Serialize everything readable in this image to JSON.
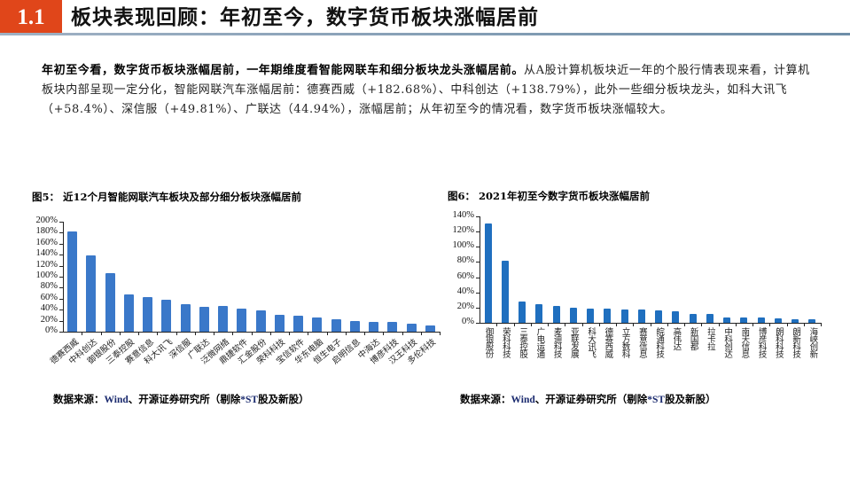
{
  "header": {
    "section_number": "1.1",
    "title": "板块表现回顾：年初至今，数字货币板块涨幅居前",
    "accent_color": "#e0461a"
  },
  "paragraph": {
    "bold": "年初至今看，数字货币板块涨幅居前，一年期维度看智能网联车和细分板块龙头涨幅居前。",
    "normal": "从A股计算机板块近一年的个股行情表现来看，计算机板块内部呈现一定分化，智能网联汽车涨幅居前：德赛西威（+182.68%）、中科创达（+138.79%），此外一些细分板块龙头，如科大讯飞（+58.4%）、深信服（+49.81%）、广联达（44.94%），涨幅居前；从年初至今的情况看，数字货币板块涨幅较大。"
  },
  "figures": {
    "left": {
      "label": "图5：",
      "title": "近12个月智能网联汽车板块及部分细分板块涨幅居前",
      "source_prefix": "数据来源：",
      "source_en": "Wind",
      "source_mid": "、开源证券研究所（剔除",
      "source_st": "*ST",
      "source_suffix": "股及新股）"
    },
    "right": {
      "label": "图6：",
      "title": "2021年初至今数字货币板块涨幅居前",
      "source_prefix": "数据来源：",
      "source_en": "Wind",
      "source_mid": "、开源证券研究所（剔除",
      "source_st": "*ST",
      "source_suffix": "股及新股）"
    }
  },
  "chart_data": [
    {
      "type": "bar",
      "title": "近12个月智能网联汽车板块及部分细分板块涨幅居前",
      "xlabel": "",
      "ylabel": "",
      "ylim": [
        0,
        200
      ],
      "yticks": [
        "0%",
        "20%",
        "40%",
        "60%",
        "80%",
        "100%",
        "120%",
        "140%",
        "160%",
        "180%",
        "200%"
      ],
      "grid": false,
      "legend": null,
      "bar_color": "#3a78c9",
      "categories": [
        "德赛西威",
        "中科创达",
        "御银股份",
        "三泰控股",
        "赛意信息",
        "科大讯飞",
        "深信服",
        "广联达",
        "泛微网络",
        "鼎捷软件",
        "汇金股份",
        "荣科科技",
        "宝信软件",
        "华东电脑",
        "恒生电子",
        "启明信息",
        "中海达",
        "博彦科技",
        "汉王科技",
        "多伦科技"
      ],
      "values": [
        182.68,
        138.79,
        107,
        67,
        63,
        58.4,
        49.81,
        44.94,
        46,
        42,
        39,
        30,
        29,
        26,
        22,
        19,
        17,
        17,
        15,
        12
      ]
    },
    {
      "type": "bar",
      "title": "2021年初至今数字货币板块涨幅居前",
      "xlabel": "",
      "ylabel": "",
      "ylim": [
        0,
        140
      ],
      "yticks": [
        "0%",
        "20%",
        "40%",
        "60%",
        "80%",
        "100%",
        "120%",
        "140%"
      ],
      "grid": false,
      "legend": null,
      "bar_color": "#1f6fbf",
      "categories": [
        "御银股份",
        "荣科科技",
        "三泰控股",
        "广电运通",
        "麦迪科技",
        "亚联发展",
        "科大讯飞",
        "德赛西威",
        "立方数科",
        "赛意信息",
        "皖通科技",
        "高伟达",
        "新国都",
        "拉卡拉",
        "中科创达",
        "南天信息",
        "博彦科技",
        "朗科科技",
        "朗新科技",
        "海峡创新"
      ],
      "values": [
        131,
        82,
        28,
        25,
        22.5,
        19.5,
        19,
        18.5,
        17.5,
        17,
        16,
        15,
        12,
        11.5,
        7,
        6.5,
        6.5,
        6,
        5,
        5
      ]
    }
  ]
}
